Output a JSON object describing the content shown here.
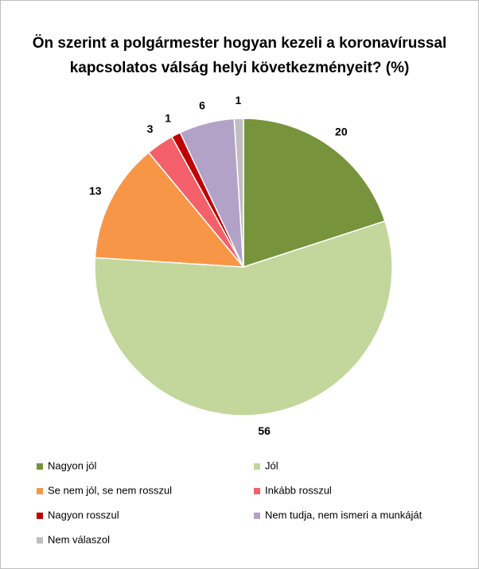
{
  "chart_data": {
    "type": "pie",
    "title": "Ön szerint a polgármester hogyan kezeli a koronavírussal kapcsolatos válság helyi következményeit? (%)",
    "categories": [
      "Nagyon jól",
      "Jól",
      "Se nem jól, se nem rosszul",
      "Inkább rosszul",
      "Nagyon rosszul",
      "Nem tudja, nem ismeri a munkáját",
      "Nem válaszol"
    ],
    "values": [
      20,
      56,
      13,
      3,
      1,
      6,
      1
    ],
    "colors": [
      "#77933c",
      "#c3d69b",
      "#f79646",
      "#f4606a",
      "#c00000",
      "#b3a2c7",
      "#bfbfbf"
    ]
  }
}
